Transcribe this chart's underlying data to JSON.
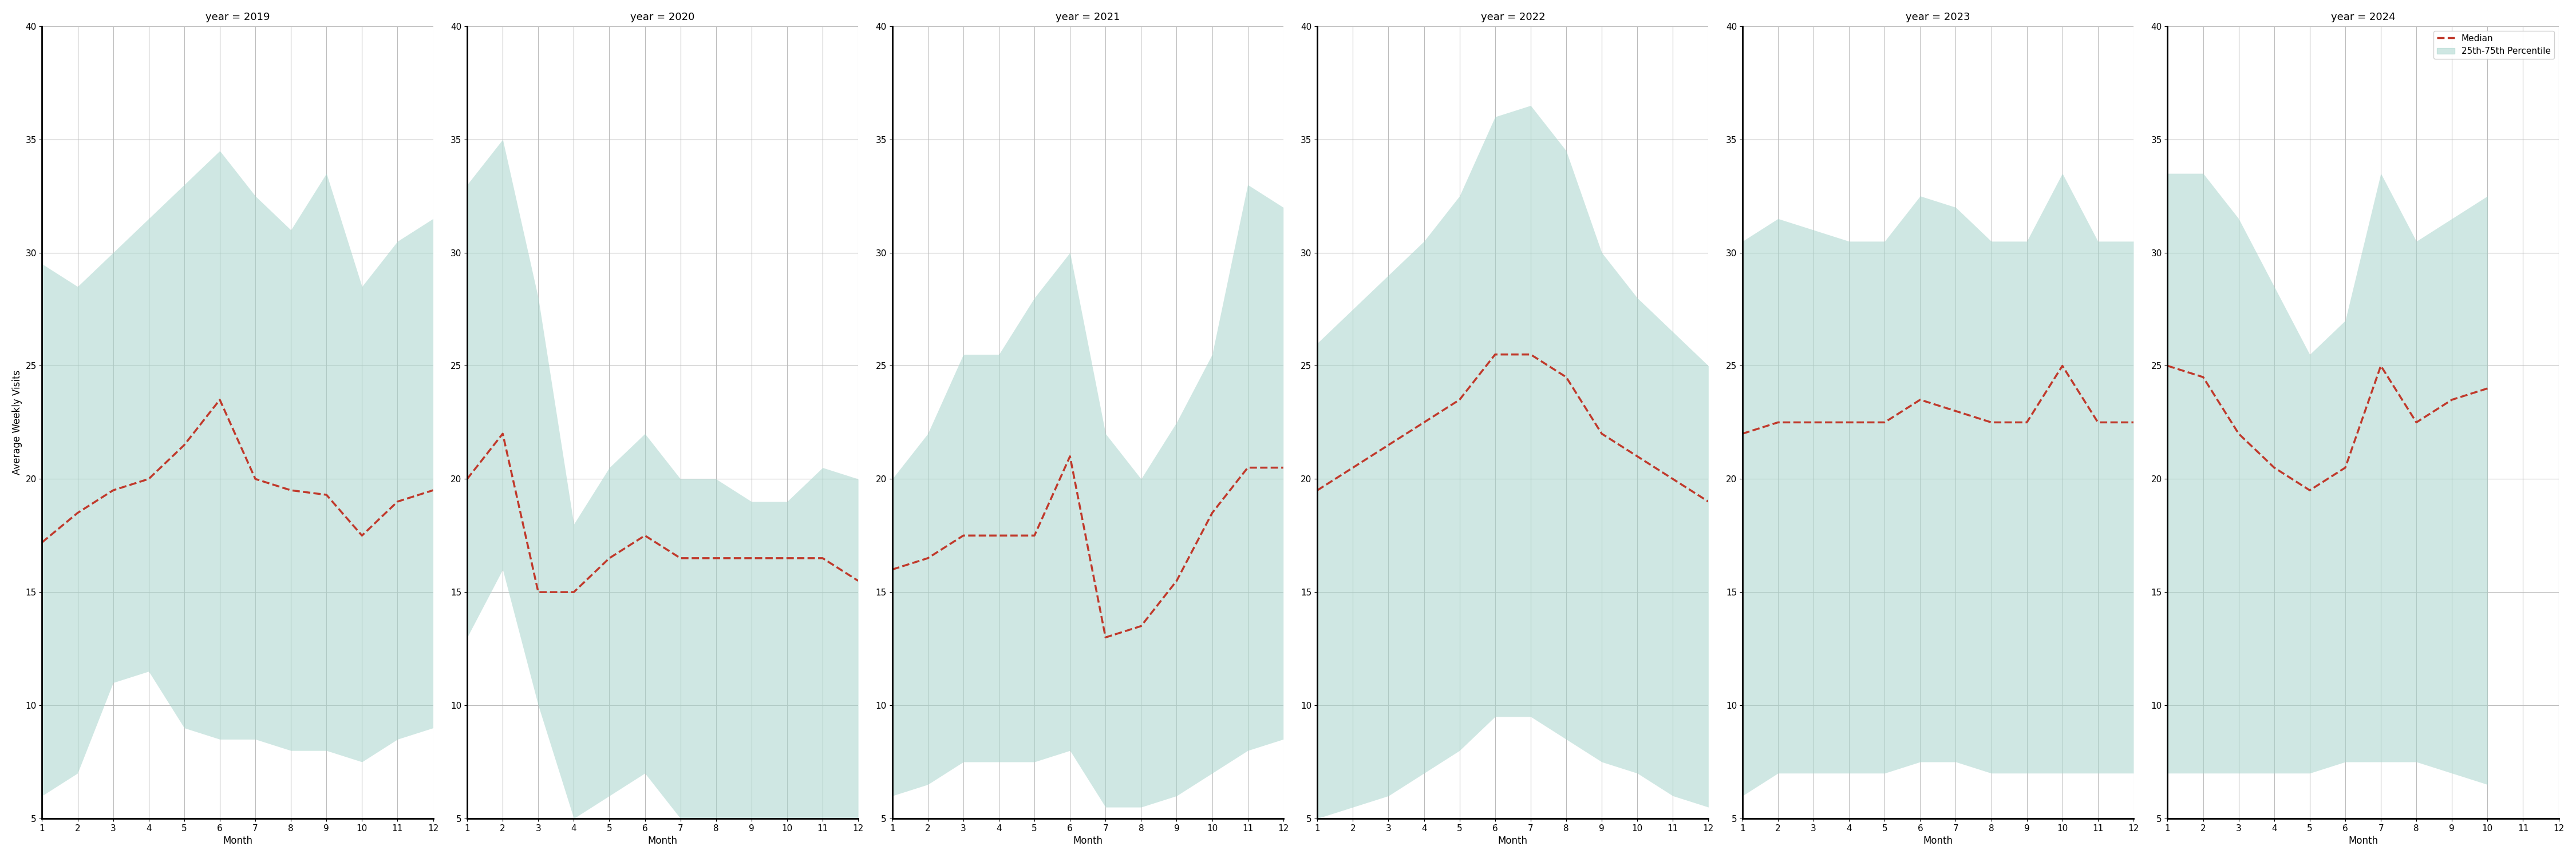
{
  "years": [
    2019,
    2020,
    2021,
    2022,
    2023,
    2024
  ],
  "months": [
    1,
    2,
    3,
    4,
    5,
    6,
    7,
    8,
    9,
    10,
    11,
    12
  ],
  "median": {
    "2019": [
      17.2,
      18.5,
      19.5,
      20.0,
      21.5,
      23.5,
      20.0,
      19.5,
      19.3,
      17.5,
      19.0,
      19.5
    ],
    "2020": [
      20.0,
      22.0,
      15.0,
      15.0,
      16.5,
      17.5,
      16.5,
      16.5,
      16.5,
      16.5,
      16.5,
      15.5
    ],
    "2021": [
      16.0,
      16.5,
      17.5,
      17.5,
      17.5,
      21.0,
      13.0,
      13.5,
      15.5,
      18.5,
      20.5,
      20.5
    ],
    "2022": [
      19.5,
      20.5,
      21.5,
      22.5,
      23.5,
      25.5,
      25.5,
      24.5,
      22.0,
      21.0,
      20.0,
      19.0
    ],
    "2023": [
      22.0,
      22.5,
      22.5,
      22.5,
      22.5,
      23.5,
      23.0,
      22.5,
      22.5,
      25.0,
      22.5,
      22.5
    ],
    "2024": [
      25.0,
      24.5,
      22.0,
      20.5,
      19.5,
      20.5,
      25.0,
      22.5,
      23.5,
      24.0,
      null,
      null
    ]
  },
  "p25": {
    "2019": [
      6.0,
      7.0,
      11.0,
      11.5,
      9.0,
      8.5,
      8.5,
      8.0,
      8.0,
      7.5,
      8.5,
      9.0
    ],
    "2020": [
      13.0,
      16.0,
      10.0,
      5.0,
      6.0,
      7.0,
      5.0,
      5.0,
      5.0,
      5.0,
      5.0,
      5.0
    ],
    "2021": [
      6.0,
      6.5,
      7.5,
      7.5,
      7.5,
      8.0,
      5.5,
      5.5,
      6.0,
      7.0,
      8.0,
      8.5
    ],
    "2022": [
      5.0,
      5.5,
      6.0,
      7.0,
      8.0,
      9.5,
      9.5,
      8.5,
      7.5,
      7.0,
      6.0,
      5.5
    ],
    "2023": [
      6.0,
      7.0,
      7.0,
      7.0,
      7.0,
      7.5,
      7.5,
      7.0,
      7.0,
      7.0,
      7.0,
      7.0
    ],
    "2024": [
      7.0,
      7.0,
      7.0,
      7.0,
      7.0,
      7.5,
      7.5,
      7.5,
      7.0,
      6.5,
      null,
      null
    ]
  },
  "p75": {
    "2019": [
      29.5,
      28.5,
      30.0,
      31.5,
      33.0,
      34.5,
      32.5,
      31.0,
      33.5,
      28.5,
      30.5,
      31.5
    ],
    "2020": [
      33.0,
      35.0,
      28.0,
      18.0,
      20.5,
      22.0,
      20.0,
      20.0,
      19.0,
      19.0,
      20.5,
      20.0
    ],
    "2021": [
      20.0,
      22.0,
      25.5,
      25.5,
      28.0,
      30.0,
      22.0,
      20.0,
      22.5,
      25.5,
      33.0,
      32.0
    ],
    "2022": [
      26.0,
      27.5,
      29.0,
      30.5,
      32.5,
      36.0,
      36.5,
      34.5,
      30.0,
      28.0,
      26.5,
      25.0
    ],
    "2023": [
      30.5,
      31.5,
      31.0,
      30.5,
      30.5,
      32.5,
      32.0,
      30.5,
      30.5,
      33.5,
      30.5,
      30.5
    ],
    "2024": [
      33.5,
      33.5,
      31.5,
      28.5,
      25.5,
      27.0,
      33.5,
      30.5,
      31.5,
      32.5,
      null,
      null
    ]
  },
  "ylim": [
    5,
    40
  ],
  "yticks": [
    5,
    10,
    15,
    20,
    25,
    30,
    35,
    40
  ],
  "ylabel": "Average Weekly Visits",
  "xlabel": "Month",
  "fill_color": "#a8d5cc",
  "fill_alpha": 0.55,
  "line_color": "#c0392b",
  "line_style": "--",
  "line_width": 2.5,
  "grid_color": "#bbbbbb",
  "background_color": "#ffffff",
  "title_fontsize": 13,
  "label_fontsize": 12,
  "tick_fontsize": 11
}
